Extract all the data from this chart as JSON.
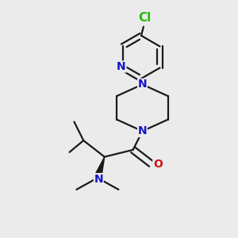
{
  "background_color": "#ebebeb",
  "bond_color": "#1a1a1a",
  "nitrogen_color": "#1414cc",
  "oxygen_color": "#cc1414",
  "chlorine_color": "#22bb00",
  "bond_width": 1.6,
  "font_size_atom": 10,
  "figsize": [
    3.0,
    3.0
  ],
  "dpi": 100,
  "xlim": [
    0.0,
    1.0
  ],
  "ylim": [
    0.0,
    1.0
  ]
}
